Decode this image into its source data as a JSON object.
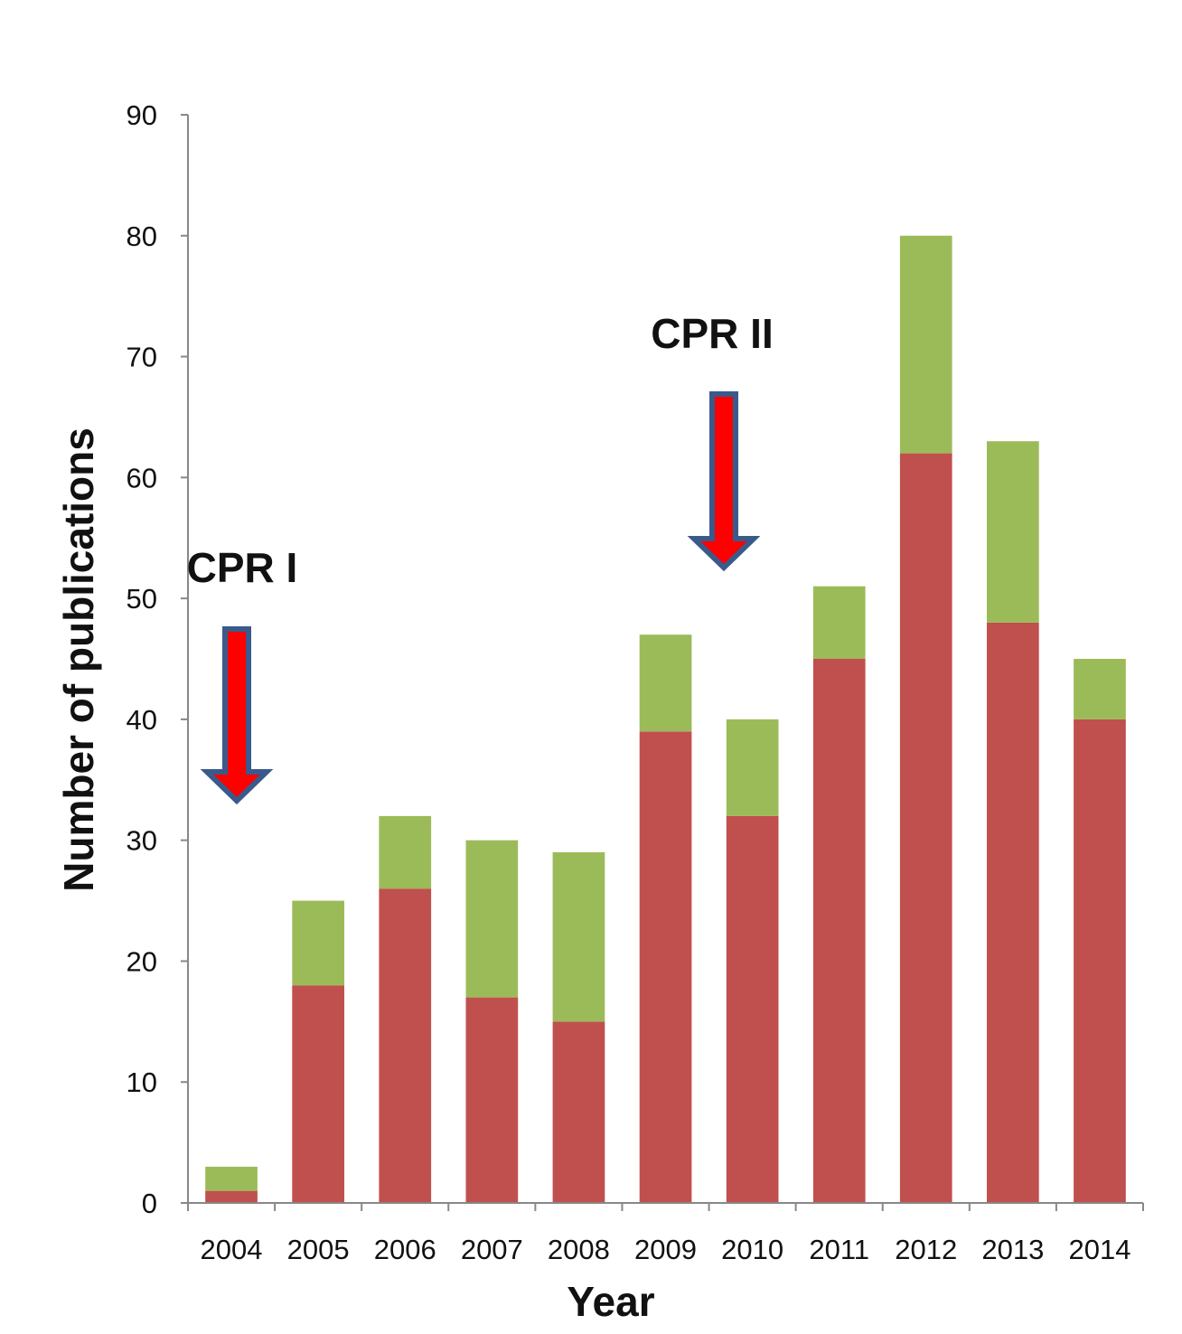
{
  "chart_data": {
    "type": "bar",
    "stacked": true,
    "categories": [
      "2004",
      "2005",
      "2006",
      "2007",
      "2008",
      "2009",
      "2010",
      "2011",
      "2012",
      "2013",
      "2014"
    ],
    "series": [
      {
        "values": [
          1,
          18,
          26,
          17,
          15,
          39,
          32,
          45,
          62,
          48,
          40
        ],
        "color": "#c0504d"
      },
      {
        "values": [
          2,
          7,
          6,
          13,
          14,
          8,
          8,
          6,
          18,
          15,
          5
        ],
        "color": "#9bbb59"
      }
    ],
    "xlabel": "Year",
    "ylabel": "Number of publications",
    "ylim": [
      0,
      90
    ],
    "yticks": [
      "0",
      "10",
      "20",
      "30",
      "40",
      "50",
      "60",
      "70",
      "80",
      "90"
    ],
    "grid": false,
    "legend": "none",
    "annotations": [
      {
        "text": "CPR I",
        "points_to": "2004",
        "arrow_color": "#ff0000",
        "arrow_outline": "#3a5a8c"
      },
      {
        "text": "CPR II",
        "points_to": "2010",
        "arrow_color": "#ff0000",
        "arrow_outline": "#3a5a8c"
      }
    ]
  }
}
